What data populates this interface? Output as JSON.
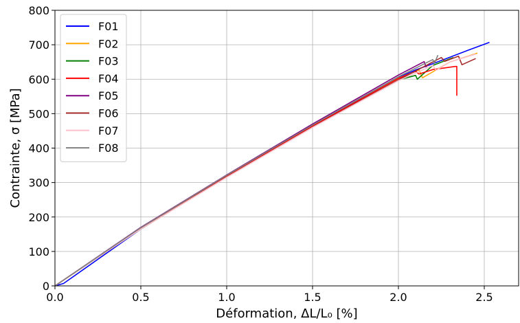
{
  "chart_data": {
    "type": "line",
    "xlabel": "Déformation,  ΔL/L₀ [%]",
    "ylabel": "Contrainte, σ [MPa]",
    "xlim": [
      0,
      2.7
    ],
    "ylim": [
      0,
      800
    ],
    "xticks": [
      "0.0",
      "0.5",
      "1.0",
      "1.5",
      "2.0",
      "2.5"
    ],
    "yticks": [
      "0",
      "100",
      "200",
      "300",
      "400",
      "500",
      "600",
      "700",
      "800"
    ],
    "grid": true,
    "legend_position": "top-left",
    "series": [
      {
        "name": "F01",
        "color": "#0000ff",
        "x": [
          0,
          0.05,
          0.5,
          1.0,
          1.5,
          2.0,
          2.1,
          2.2,
          2.3,
          2.4,
          2.53
        ],
        "y": [
          0,
          7,
          165,
          318,
          465,
          605,
          627,
          645,
          664,
          683,
          707
        ]
      },
      {
        "name": "F02",
        "color": "#ffa500",
        "x": [
          0,
          0.5,
          1.0,
          1.5,
          2.0,
          2.12,
          2.14,
          2.3,
          2.46
        ],
        "y": [
          0,
          168,
          318,
          463,
          603,
          627,
          604,
          650,
          676
        ]
      },
      {
        "name": "F03",
        "color": "#008000",
        "x": [
          0,
          0.5,
          1.0,
          1.5,
          2.0,
          2.1,
          2.11,
          2.2,
          2.32
        ],
        "y": [
          0,
          165,
          316,
          461,
          598,
          611,
          600,
          640,
          663
        ]
      },
      {
        "name": "F04",
        "color": "#ff0000",
        "x": [
          0,
          0.5,
          1.0,
          1.5,
          2.0,
          2.1,
          2.12,
          2.2,
          2.33,
          2.34,
          2.34
        ],
        "y": [
          0,
          168,
          318,
          464,
          602,
          623,
          615,
          628,
          637,
          637,
          552
        ]
      },
      {
        "name": "F05",
        "color": "#800080",
        "x": [
          0,
          0.5,
          1.0,
          1.5,
          2.0,
          2.15,
          2.16,
          2.18,
          2.2
        ],
        "y": [
          0,
          170,
          322,
          470,
          612,
          651,
          636,
          645,
          650
        ]
      },
      {
        "name": "F06",
        "color": "#a52a2a",
        "x": [
          0,
          0.5,
          1.0,
          1.5,
          2.0,
          2.25,
          2.27,
          2.35,
          2.37,
          2.45
        ],
        "y": [
          0,
          166,
          316,
          461,
          598,
          663,
          652,
          667,
          642,
          660
        ]
      },
      {
        "name": "F07",
        "color": "#ffc0cb",
        "x": [
          0,
          0.5,
          1.0,
          1.5,
          2.0,
          2.2,
          2.22,
          2.3,
          2.45
        ],
        "y": [
          0,
          165,
          315,
          460,
          596,
          640,
          626,
          650,
          673
        ]
      },
      {
        "name": "F08",
        "color": "#808080",
        "x": [
          0,
          0.5,
          1.0,
          1.5,
          2.0,
          2.2,
          2.21,
          2.23
        ],
        "y": [
          0,
          169,
          321,
          467,
          607,
          657,
          646,
          670
        ]
      }
    ]
  }
}
